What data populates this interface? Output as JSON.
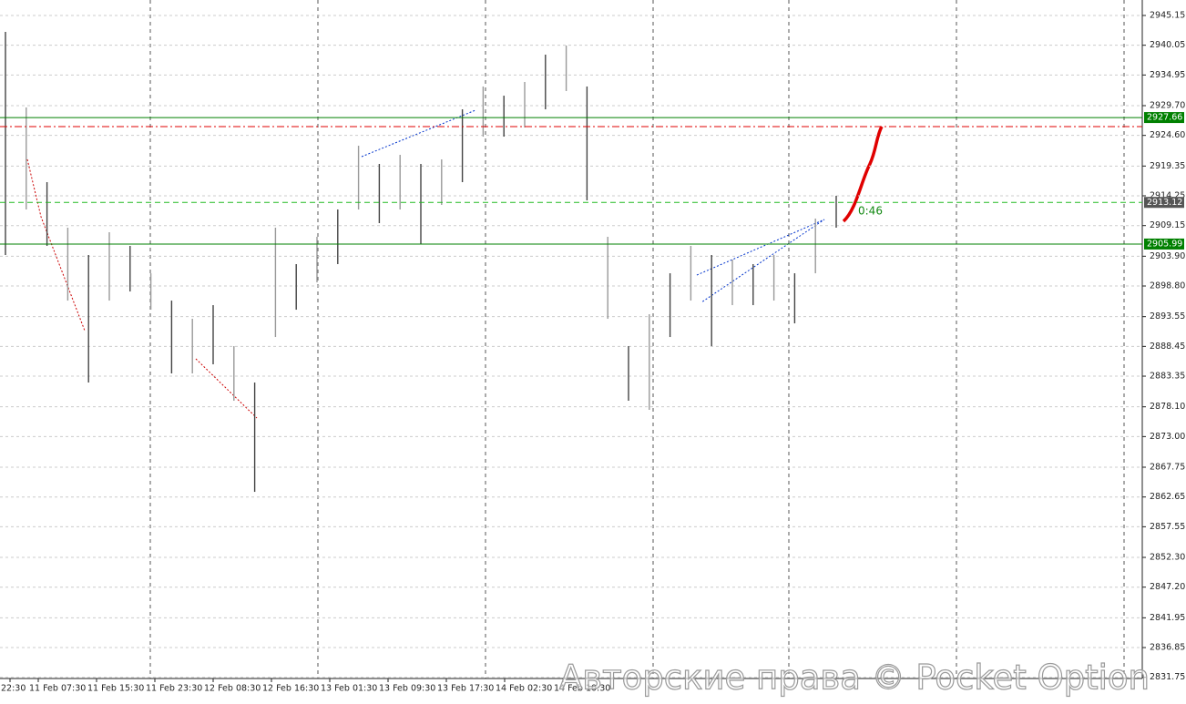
{
  "chart_data": {
    "type": "hilo",
    "color": "#444444",
    "high": [
      2942.34,
      2929.39,
      2916.59,
      2908.79,
      2904.11,
      2908.01,
      2905.67,
      2900.98,
      2896.3,
      2893.18,
      2895.52,
      2888.5,
      2882.26,
      2908.79,
      2902.55,
      2907.23,
      2911.91,
      2922.83,
      2919.71,
      2921.27,
      2919.71,
      2920.49,
      2929.07,
      2932.98,
      2931.41,
      2933.76,
      2938.44,
      2940.0,
      2932.98,
      2907.23,
      2888.5,
      2893.96,
      2900.98,
      2905.67,
      2904.11,
      2903.33,
      2902.55,
      2904.11,
      2900.98,
      2910.35,
      2914.25
    ],
    "low": [
      2904.11,
      2911.91,
      2905.67,
      2896.3,
      2882.26,
      2896.3,
      2897.86,
      2894.74,
      2883.82,
      2883.82,
      2885.38,
      2879.14,
      2863.53,
      2890.06,
      2894.74,
      2899.42,
      2902.55,
      2911.91,
      2909.57,
      2911.91,
      2905.98,
      2912.69,
      2916.59,
      2924.39,
      2924.39,
      2925.95,
      2929.07,
      2932.2,
      2913.47,
      2893.18,
      2879.14,
      2877.58,
      2890.06,
      2896.3,
      2888.5,
      2895.52,
      2895.52,
      2896.3,
      2892.4,
      2900.98,
      2908.79
    ],
    "xlabels": [
      "22:30",
      "11 Feb 07:30",
      "11 Feb 15:30",
      "11 Feb 23:30",
      "12 Feb 08:30",
      "12 Feb 16:30",
      "13 Feb 01:30",
      "13 Feb 09:30",
      "13 Feb 17:30",
      "14 Feb 02:30",
      "14 Feb 10:30"
    ],
    "ylim": [
      2831.55,
      2947.8
    ],
    "yticks": [
      2945.15,
      2940.05,
      2934.95,
      {
        "value": 2929.7,
        "label": "2929.70"
      },
      {
        "value": 2924.6,
        "label": "2924.60"
      },
      2919.35,
      2914.25,
      2909.15,
      {
        "value": 2903.9,
        "label": "2903.90"
      },
      {
        "value": 2898.8,
        "label": "2898.80"
      },
      2893.55,
      2888.45,
      2883.35,
      {
        "value": 2878.1,
        "label": "2878.10"
      },
      {
        "value": 2873,
        "label": "2873.00"
      },
      2867.75,
      2862.65,
      2857.55,
      {
        "value": 2852.3,
        "label": "2852.30"
      },
      {
        "value": 2847.2,
        "label": "2847.20"
      },
      2841.95,
      2836.85,
      2831.75
    ],
    "grid": true,
    "levels": [
      {
        "value": 2927.66,
        "color": "#008000",
        "dash": "none",
        "box": "#008000"
      },
      {
        "value": 2926.11,
        "color": "#e00000",
        "dash": "8 3 2 3"
      },
      {
        "value": 2913.12,
        "color": "#22bb22",
        "dash": "6 4",
        "box": "#555555"
      },
      {
        "value": 2905.99,
        "color": "#008000",
        "dash": "none",
        "box": "#008000"
      }
    ],
    "annotation": "0:46",
    "watermark": "Авторские права © Pocket Option"
  }
}
